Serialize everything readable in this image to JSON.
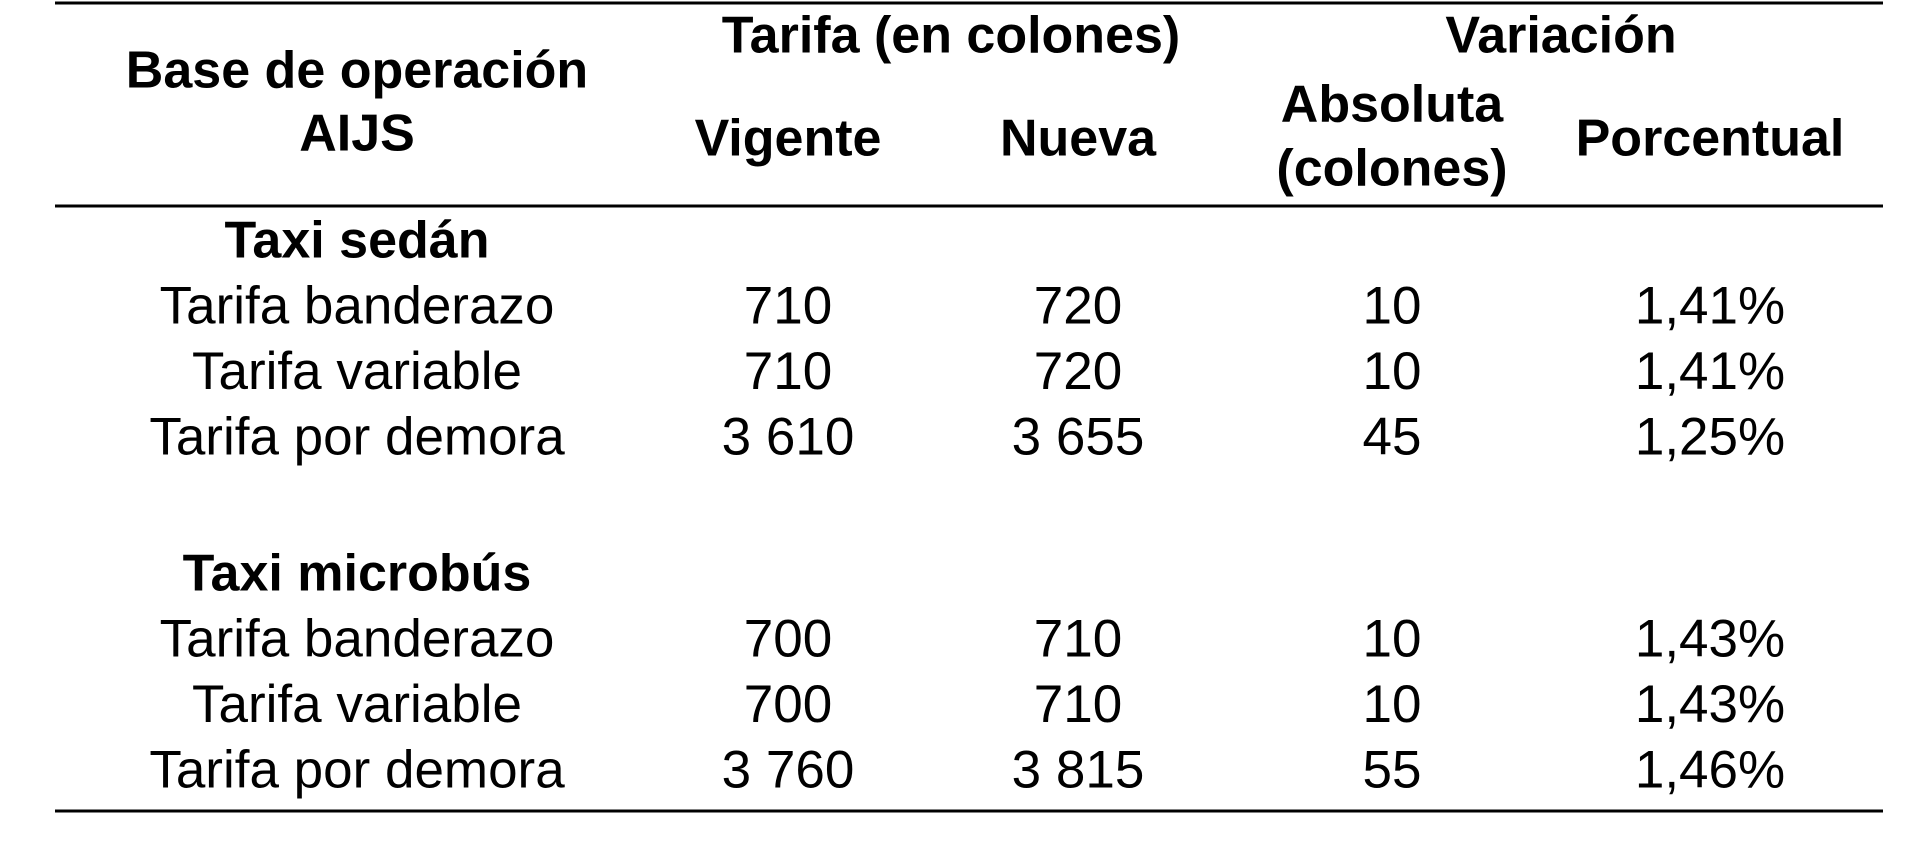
{
  "header": {
    "row_label": [
      "Base de operación",
      "AIJS"
    ],
    "group_tarifa": "Tarifa (en colones)",
    "group_variacion": "Variación",
    "columns": [
      [
        "Vigente"
      ],
      [
        "Nueva"
      ],
      [
        "Absoluta",
        "(colones)"
      ],
      [
        "Porcentual"
      ]
    ]
  },
  "sections": [
    {
      "title": "Taxi sedán",
      "rows": [
        [
          "Tarifa banderazo",
          "710",
          "720",
          "10",
          "1,41%"
        ],
        [
          "Tarifa variable",
          "710",
          "720",
          "10",
          "1,41%"
        ],
        [
          "Tarifa por demora",
          "3 610",
          "3 655",
          "45",
          "1,25%"
        ]
      ]
    },
    {
      "title": "Taxi microbús",
      "rows": [
        [
          "Tarifa banderazo",
          "700",
          "710",
          "10",
          "1,43%"
        ],
        [
          "Tarifa variable",
          "700",
          "710",
          "10",
          "1,43%"
        ],
        [
          "Tarifa por demora",
          "3 760",
          "3 815",
          "55",
          "1,46%"
        ]
      ]
    }
  ]
}
